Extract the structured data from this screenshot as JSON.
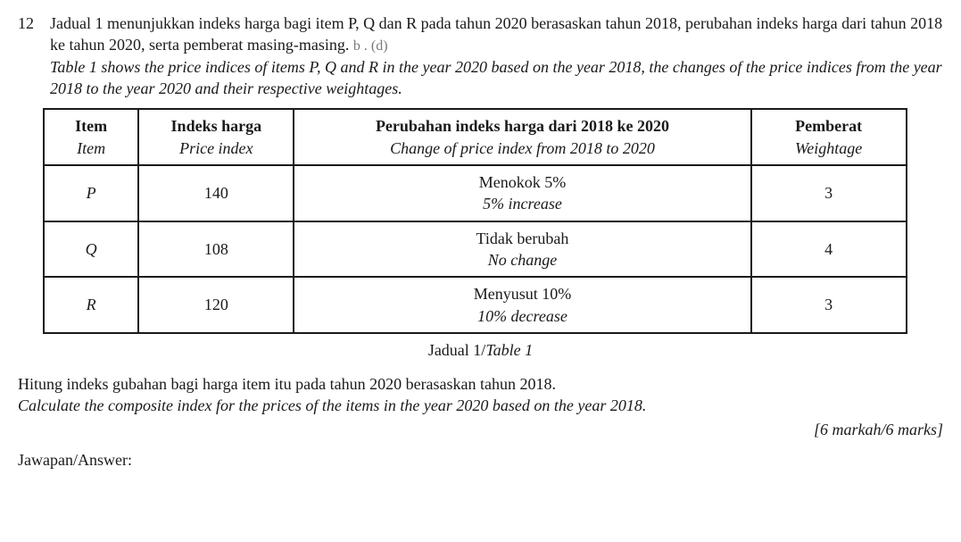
{
  "question_number": "12",
  "lead_ms": "Jadual 1 menunjukkan indeks harga bagi item P, Q dan R pada tahun 2020 berasaskan tahun 2018, perubahan indeks harga dari tahun 2018 ke tahun 2020, serta pemberat masing-masing.",
  "lead_en": "Table 1 shows the price indices of items P, Q and R in the year 2020 based on the year 2018, the changes of the price indices from the year 2018 to the year 2020 and their respective weightages.",
  "faint_artifact": "b . (d)",
  "table": {
    "headers": {
      "item_ms": "Item",
      "item_en": "Item",
      "index_ms": "Indeks harga",
      "index_en": "Price index",
      "change_ms": "Perubahan indeks harga dari 2018 ke 2020",
      "change_en": "Change of price index from 2018 to 2020",
      "weight_ms": "Pemberat",
      "weight_en": "Weightage"
    },
    "rows": [
      {
        "item": "P",
        "index": "140",
        "change_ms": "Menokok 5%",
        "change_en": "5% increase",
        "weight": "3"
      },
      {
        "item": "Q",
        "index": "108",
        "change_ms": "Tidak berubah",
        "change_en": "No change",
        "weight": "4"
      },
      {
        "item": "R",
        "index": "120",
        "change_ms": "Menyusut 10%",
        "change_en": "10% decrease",
        "weight": "3"
      }
    ],
    "caption_ms": "Jadual 1/",
    "caption_en": "Table 1",
    "col_widths": [
      "11%",
      "18%",
      "53%",
      "18%"
    ],
    "border_color": "#1a1a1a"
  },
  "prompt_ms": "Hitung indeks gubahan bagi harga item itu pada tahun 2020 berasaskan tahun 2018.",
  "prompt_en": "Calculate the composite index for the prices of the items in the year 2020 based on the year 2018.",
  "marks": "[6 markah/6 marks]",
  "answer_label": "Jawapan/Answer:"
}
